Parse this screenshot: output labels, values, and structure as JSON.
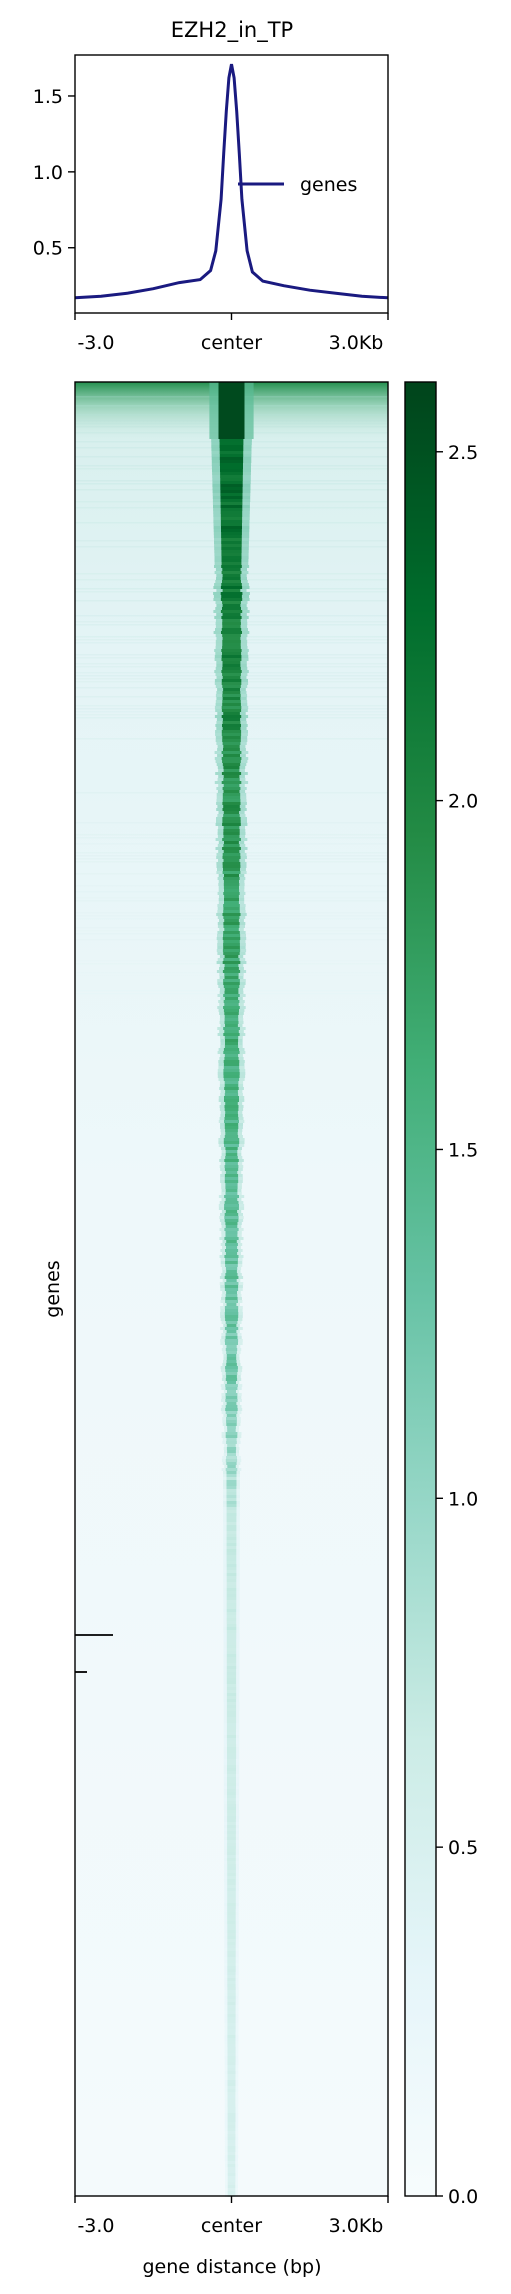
{
  "chart_data": [
    {
      "type": "line",
      "title": "EZH2_in_TP",
      "xlabel": "",
      "ylabel": "",
      "x_ticks": [
        "-3.0",
        "center",
        "3.0Kb"
      ],
      "x_range_kb": [
        -3.0,
        3.0
      ],
      "ylim": [
        0.07,
        1.77
      ],
      "y_ticks": [
        "0.5",
        "1.0",
        "1.5"
      ],
      "legend": {
        "position": "right",
        "entries": [
          "genes"
        ]
      },
      "grid": false,
      "series": [
        {
          "name": "genes",
          "color": "#1a1a80",
          "x": [
            -3.0,
            -2.5,
            -2.0,
            -1.5,
            -1.0,
            -0.6,
            -0.4,
            -0.3,
            -0.2,
            -0.15,
            -0.1,
            -0.05,
            0.0,
            0.05,
            0.1,
            0.15,
            0.2,
            0.3,
            0.4,
            0.6,
            1.0,
            1.5,
            2.0,
            2.5,
            3.0
          ],
          "values": [
            0.17,
            0.18,
            0.2,
            0.23,
            0.27,
            0.29,
            0.35,
            0.48,
            0.82,
            1.12,
            1.4,
            1.62,
            1.71,
            1.62,
            1.4,
            1.12,
            0.82,
            0.48,
            0.34,
            0.28,
            0.25,
            0.22,
            0.2,
            0.18,
            0.17
          ]
        }
      ]
    },
    {
      "type": "heatmap",
      "title": "",
      "xlabel": "gene distance (bp)",
      "ylabel": "genes",
      "x_ticks": [
        "-3.0",
        "center",
        "3.0Kb"
      ],
      "x_range_kb": [
        -3.0,
        3.0
      ],
      "description_colormap": "BuGn",
      "colorbar": {
        "range": [
          0.0,
          2.6
        ],
        "ticks": [
          "0.0",
          "0.5",
          "1.0",
          "1.5",
          "2.0",
          "2.5"
        ],
        "tick_values": [
          0.0,
          0.5,
          1.0,
          1.5,
          2.0,
          2.5
        ],
        "colors": [
          "#f7fcfd",
          "#e5f5f9",
          "#ccece6",
          "#99d8c9",
          "#66c2a4",
          "#41ae76",
          "#238b45",
          "#006d2c",
          "#00441b"
        ]
      }
    }
  ]
}
